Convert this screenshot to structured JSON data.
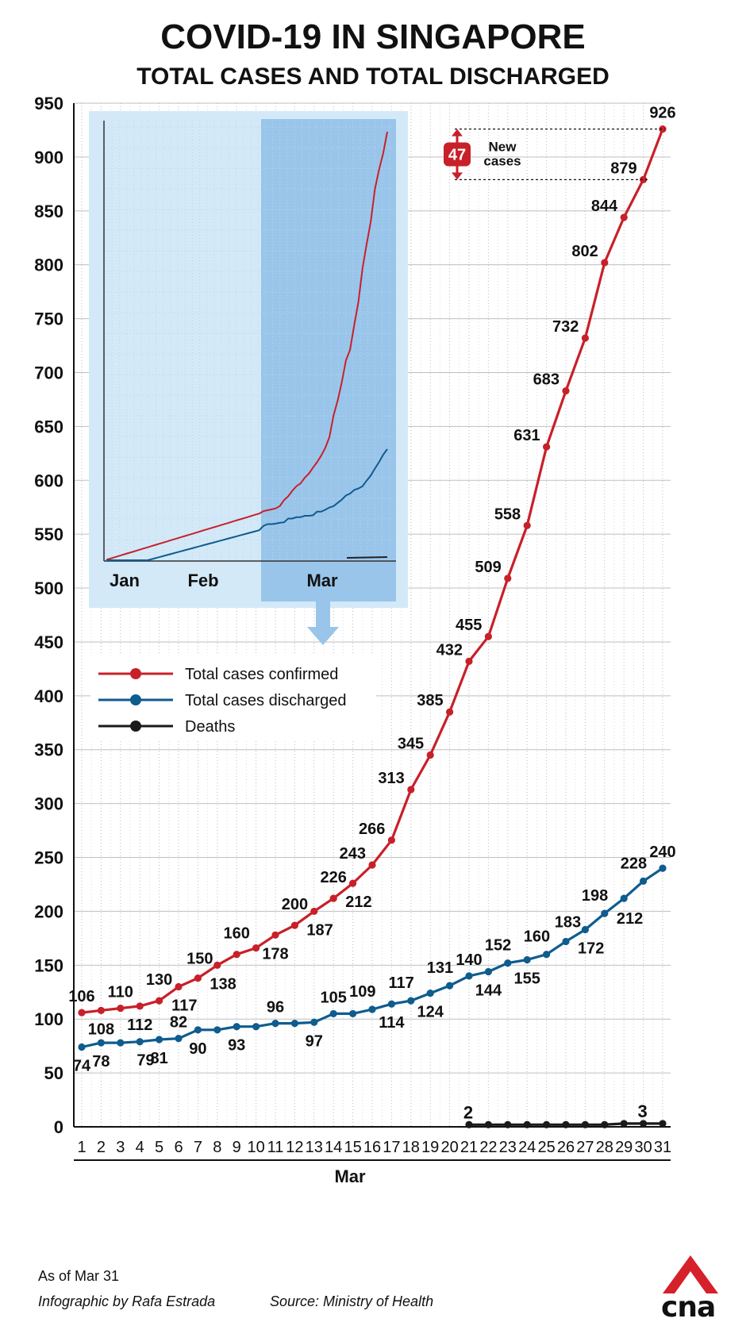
{
  "title": "COVID-19 IN SINGAPORE",
  "subtitle": "TOTAL CASES AND TOTAL DISCHARGED",
  "as_of": "As of Mar 31",
  "credit": "Infographic by Rafa Estrada",
  "source": "Source: Ministry of Health",
  "logo_text": "cna",
  "colors": {
    "confirmed": "#c8202a",
    "discharged": "#0f5c8e",
    "deaths": "#1a1a1a",
    "inset_light": "#d3e9f8",
    "inset_dark": "#9ac5ea"
  },
  "chart_data": {
    "type": "line",
    "xlabel": "Mar",
    "ylim": [
      0,
      950
    ],
    "ytick_step": 50,
    "x": [
      1,
      2,
      3,
      4,
      5,
      6,
      7,
      8,
      9,
      10,
      11,
      12,
      13,
      14,
      15,
      16,
      17,
      18,
      19,
      20,
      21,
      22,
      23,
      24,
      25,
      26,
      27,
      28,
      29,
      30,
      31
    ],
    "series": [
      {
        "name": "Total cases confirmed",
        "color": "#c8202a",
        "values": [
          106,
          108,
          110,
          112,
          117,
          130,
          138,
          150,
          160,
          166,
          178,
          187,
          200,
          212,
          226,
          243,
          266,
          313,
          345,
          385,
          432,
          455,
          509,
          558,
          631,
          683,
          732,
          802,
          844,
          879,
          926
        ]
      },
      {
        "name": "Total cases discharged",
        "color": "#0f5c8e",
        "values": [
          74,
          78,
          78,
          79,
          81,
          82,
          90,
          90,
          93,
          93,
          96,
          96,
          97,
          105,
          105,
          109,
          114,
          117,
          124,
          131,
          140,
          144,
          152,
          155,
          160,
          172,
          183,
          198,
          212,
          228,
          240
        ]
      },
      {
        "name": "Deaths",
        "color": "#1a1a1a",
        "x": [
          21,
          22,
          23,
          24,
          25,
          26,
          27,
          28,
          29,
          30,
          31
        ],
        "values": [
          2,
          2,
          2,
          2,
          2,
          2,
          2,
          2,
          3,
          3,
          3
        ]
      }
    ],
    "labels_confirmed": [
      {
        "x": 1,
        "text": "106",
        "pos": "above"
      },
      {
        "x": 2,
        "text": "108",
        "pos": "below"
      },
      {
        "x": 3,
        "text": "110",
        "pos": "above"
      },
      {
        "x": 4,
        "text": "112",
        "pos": "below"
      },
      {
        "x": 5,
        "text": "130",
        "pos": "above-far"
      },
      {
        "x": 6,
        "text": "117",
        "pos": "below-prev"
      },
      {
        "x": 7,
        "text": "150",
        "pos": "above-next"
      },
      {
        "x": 8,
        "text": "138",
        "pos": "below-prev"
      },
      {
        "x": 9,
        "text": "160",
        "pos": "above-far"
      },
      {
        "x": 11,
        "text": "178",
        "pos": "below"
      },
      {
        "x": 12,
        "text": "200",
        "pos": "above-far"
      },
      {
        "x": 13,
        "text": "187",
        "pos": "below-prev"
      },
      {
        "x": 14,
        "text": "226",
        "pos": "above-far"
      },
      {
        "x": 15,
        "text": "212",
        "pos": "below-prev"
      },
      {
        "x": 16,
        "text": "243",
        "pos": "left"
      },
      {
        "x": 17,
        "text": "266",
        "pos": "left"
      },
      {
        "x": 18,
        "text": "313",
        "pos": "left"
      },
      {
        "x": 19,
        "text": "345",
        "pos": "left"
      },
      {
        "x": 20,
        "text": "385",
        "pos": "left"
      },
      {
        "x": 21,
        "text": "432",
        "pos": "left"
      },
      {
        "x": 22,
        "text": "455",
        "pos": "left"
      },
      {
        "x": 23,
        "text": "509",
        "pos": "left"
      },
      {
        "x": 24,
        "text": "558",
        "pos": "left"
      },
      {
        "x": 25,
        "text": "631",
        "pos": "left"
      },
      {
        "x": 26,
        "text": "683",
        "pos": "left"
      },
      {
        "x": 27,
        "text": "732",
        "pos": "left"
      },
      {
        "x": 28,
        "text": "802",
        "pos": "left"
      },
      {
        "x": 29,
        "text": "844",
        "pos": "left"
      },
      {
        "x": 30,
        "text": "879",
        "pos": "left"
      },
      {
        "x": 31,
        "text": "926",
        "pos": "above"
      }
    ],
    "labels_discharged": [
      {
        "x": 1,
        "text": "74",
        "pos": "below"
      },
      {
        "x": 2,
        "text": "78",
        "pos": "below"
      },
      {
        "x": 4,
        "text": "79",
        "pos": "below-prev"
      },
      {
        "x": 5,
        "text": "81",
        "pos": "below"
      },
      {
        "x": 6,
        "text": "82",
        "pos": "above"
      },
      {
        "x": 7,
        "text": "90",
        "pos": "below"
      },
      {
        "x": 9,
        "text": "93",
        "pos": "below"
      },
      {
        "x": 11,
        "text": "96",
        "pos": "above"
      },
      {
        "x": 13,
        "text": "97",
        "pos": "below"
      },
      {
        "x": 14,
        "text": "105",
        "pos": "above"
      },
      {
        "x": 16,
        "text": "109",
        "pos": "above-prev"
      },
      {
        "x": 17,
        "text": "114",
        "pos": "below"
      },
      {
        "x": 18,
        "text": "117",
        "pos": "above-prev"
      },
      {
        "x": 19,
        "text": "124",
        "pos": "below"
      },
      {
        "x": 20,
        "text": "131",
        "pos": "above-prev"
      },
      {
        "x": 21,
        "text": "140",
        "pos": "above"
      },
      {
        "x": 22,
        "text": "144",
        "pos": "below"
      },
      {
        "x": 23,
        "text": "152",
        "pos": "above-prev"
      },
      {
        "x": 24,
        "text": "155",
        "pos": "below"
      },
      {
        "x": 25,
        "text": "160",
        "pos": "above-prev"
      },
      {
        "x": 26,
        "text": "183",
        "pos": "above-next"
      },
      {
        "x": 27,
        "text": "172",
        "pos": "below-prev"
      },
      {
        "x": 28,
        "text": "198",
        "pos": "above-prev"
      },
      {
        "x": 29,
        "text": "212",
        "pos": "below-next"
      },
      {
        "x": 30,
        "text": "228",
        "pos": "above-prev"
      },
      {
        "x": 31,
        "text": "240",
        "pos": "above"
      }
    ],
    "labels_deaths": [
      {
        "x": 21,
        "text": "2"
      },
      {
        "x": 30,
        "text": "3"
      }
    ],
    "annotation": {
      "value": "47",
      "label_line1": "New",
      "label_line2": "cases",
      "from": 879,
      "to": 926
    },
    "inset": {
      "months": [
        "Jan",
        "Feb",
        "Mar"
      ],
      "highlight": "Mar"
    }
  }
}
